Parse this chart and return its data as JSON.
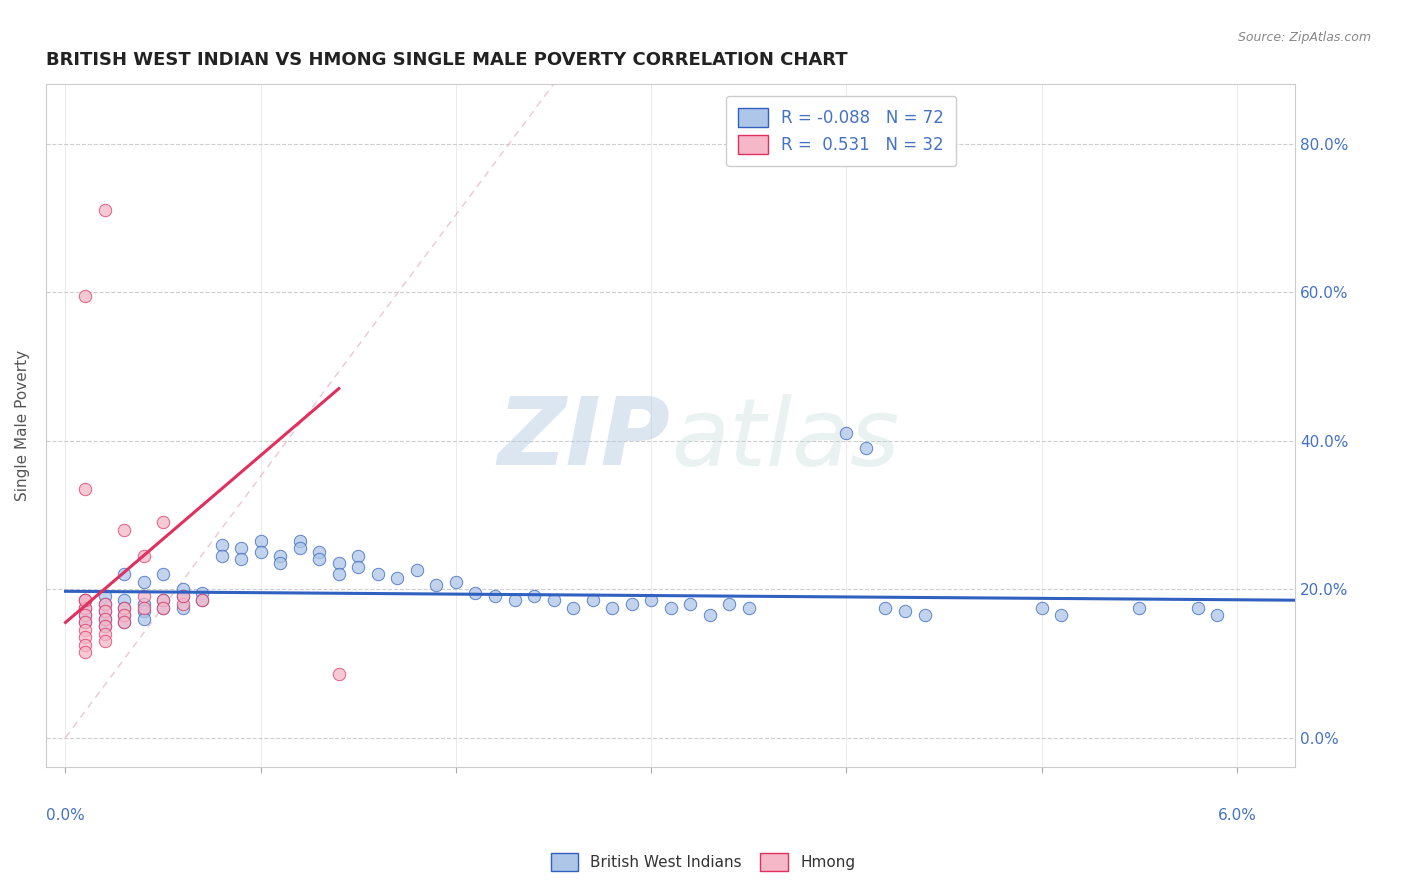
{
  "title": "BRITISH WEST INDIAN VS HMONG SINGLE MALE POVERTY CORRELATION CHART",
  "source": "Source: ZipAtlas.com",
  "ylabel": "Single Male Poverty",
  "legend_labels": [
    "British West Indians",
    "Hmong"
  ],
  "r_bwi": -0.088,
  "n_bwi": 72,
  "r_hmong": 0.531,
  "n_hmong": 32,
  "watermark_zip": "ZIP",
  "watermark_atlas": "atlas",
  "bwi_color": "#aec6e8",
  "hmong_color": "#f4b8c8",
  "bwi_line_color": "#3060c0",
  "hmong_line_color": "#e03060",
  "legend_text_color": "#4472c4",
  "title_color": "#222222",
  "axis_color": "#4472c4",
  "bwi_scatter": [
    [
      0.001,
      0.185
    ],
    [
      0.001,
      0.175
    ],
    [
      0.001,
      0.165
    ],
    [
      0.001,
      0.155
    ],
    [
      0.002,
      0.19
    ],
    [
      0.002,
      0.18
    ],
    [
      0.002,
      0.17
    ],
    [
      0.002,
      0.16
    ],
    [
      0.002,
      0.15
    ],
    [
      0.003,
      0.185
    ],
    [
      0.003,
      0.175
    ],
    [
      0.003,
      0.165
    ],
    [
      0.003,
      0.155
    ],
    [
      0.003,
      0.22
    ],
    [
      0.004,
      0.18
    ],
    [
      0.004,
      0.17
    ],
    [
      0.004,
      0.16
    ],
    [
      0.004,
      0.21
    ],
    [
      0.005,
      0.185
    ],
    [
      0.005,
      0.175
    ],
    [
      0.005,
      0.22
    ],
    [
      0.006,
      0.2
    ],
    [
      0.006,
      0.19
    ],
    [
      0.006,
      0.175
    ],
    [
      0.007,
      0.195
    ],
    [
      0.007,
      0.185
    ],
    [
      0.008,
      0.26
    ],
    [
      0.008,
      0.245
    ],
    [
      0.009,
      0.255
    ],
    [
      0.009,
      0.24
    ],
    [
      0.01,
      0.265
    ],
    [
      0.01,
      0.25
    ],
    [
      0.011,
      0.245
    ],
    [
      0.011,
      0.235
    ],
    [
      0.012,
      0.265
    ],
    [
      0.012,
      0.255
    ],
    [
      0.013,
      0.25
    ],
    [
      0.013,
      0.24
    ],
    [
      0.014,
      0.235
    ],
    [
      0.014,
      0.22
    ],
    [
      0.015,
      0.245
    ],
    [
      0.015,
      0.23
    ],
    [
      0.016,
      0.22
    ],
    [
      0.017,
      0.215
    ],
    [
      0.018,
      0.225
    ],
    [
      0.019,
      0.205
    ],
    [
      0.02,
      0.21
    ],
    [
      0.021,
      0.195
    ],
    [
      0.022,
      0.19
    ],
    [
      0.023,
      0.185
    ],
    [
      0.024,
      0.19
    ],
    [
      0.025,
      0.185
    ],
    [
      0.026,
      0.175
    ],
    [
      0.027,
      0.185
    ],
    [
      0.028,
      0.175
    ],
    [
      0.029,
      0.18
    ],
    [
      0.03,
      0.185
    ],
    [
      0.031,
      0.175
    ],
    [
      0.032,
      0.18
    ],
    [
      0.033,
      0.165
    ],
    [
      0.034,
      0.18
    ],
    [
      0.035,
      0.175
    ],
    [
      0.04,
      0.41
    ],
    [
      0.041,
      0.39
    ],
    [
      0.042,
      0.175
    ],
    [
      0.043,
      0.17
    ],
    [
      0.044,
      0.165
    ],
    [
      0.05,
      0.175
    ],
    [
      0.051,
      0.165
    ],
    [
      0.055,
      0.175
    ],
    [
      0.058,
      0.175
    ],
    [
      0.059,
      0.165
    ]
  ],
  "hmong_scatter": [
    [
      0.001,
      0.185
    ],
    [
      0.001,
      0.175
    ],
    [
      0.001,
      0.165
    ],
    [
      0.001,
      0.155
    ],
    [
      0.001,
      0.145
    ],
    [
      0.001,
      0.135
    ],
    [
      0.001,
      0.125
    ],
    [
      0.001,
      0.115
    ],
    [
      0.001,
      0.185
    ],
    [
      0.002,
      0.18
    ],
    [
      0.002,
      0.17
    ],
    [
      0.002,
      0.16
    ],
    [
      0.002,
      0.15
    ],
    [
      0.002,
      0.14
    ],
    [
      0.002,
      0.13
    ],
    [
      0.003,
      0.175
    ],
    [
      0.003,
      0.165
    ],
    [
      0.003,
      0.155
    ],
    [
      0.003,
      0.28
    ],
    [
      0.004,
      0.19
    ],
    [
      0.004,
      0.175
    ],
    [
      0.004,
      0.245
    ],
    [
      0.005,
      0.185
    ],
    [
      0.005,
      0.175
    ],
    [
      0.005,
      0.29
    ],
    [
      0.006,
      0.18
    ],
    [
      0.006,
      0.19
    ],
    [
      0.007,
      0.185
    ],
    [
      0.001,
      0.595
    ],
    [
      0.002,
      0.71
    ],
    [
      0.001,
      0.335
    ],
    [
      0.014,
      0.085
    ]
  ],
  "xlim": [
    -0.001,
    0.063
  ],
  "ylim": [
    -0.04,
    0.88
  ],
  "xticks": [
    0.0,
    0.01,
    0.02,
    0.03,
    0.04,
    0.05,
    0.06
  ],
  "yticks": [
    0.0,
    0.2,
    0.4,
    0.6,
    0.8
  ],
  "ytick_labels": [
    "0.0%",
    "20.0%",
    "40.0%",
    "60.0%",
    "80.0%"
  ],
  "grid_color": "#c8c8c8",
  "background_color": "#ffffff",
  "bwi_trend": [
    0.0,
    0.063,
    0.197,
    0.185
  ],
  "hmong_trend_x": [
    0.0,
    0.014
  ],
  "hmong_trend_y": [
    0.155,
    0.47
  ]
}
